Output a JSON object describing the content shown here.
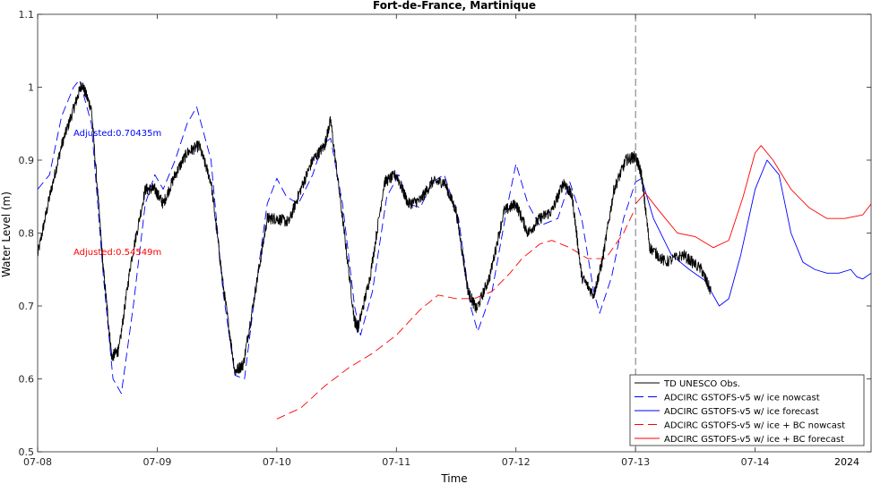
{
  "chart_data": {
    "type": "line",
    "title": "Fort-de-France, Martinique",
    "xlabel": "Time",
    "ylabel": "Water Level (m)",
    "xlim": [
      0,
      6.97
    ],
    "ylim": [
      0.5,
      1.1
    ],
    "x_ticks": [
      {
        "v": 0,
        "label": "07-08"
      },
      {
        "v": 1,
        "label": "07-09"
      },
      {
        "v": 2,
        "label": "07-10"
      },
      {
        "v": 3,
        "label": "07-11"
      },
      {
        "v": 4,
        "label": "07-12"
      },
      {
        "v": 5,
        "label": "07-13"
      },
      {
        "v": 6,
        "label": "07-14"
      }
    ],
    "x_year_label": "2024",
    "y_ticks": [
      {
        "v": 0.5,
        "label": "0.5"
      },
      {
        "v": 0.6,
        "label": "0.6"
      },
      {
        "v": 0.7,
        "label": "0.7"
      },
      {
        "v": 0.8,
        "label": "0.8"
      },
      {
        "v": 0.9,
        "label": "0.9"
      },
      {
        "v": 1.0,
        "label": "1"
      },
      {
        "v": 1.1,
        "label": "1.1"
      }
    ],
    "grid": false,
    "legend_position": "bottom-right",
    "nowcast_forecast_divider_x": 5.0,
    "annotations": [
      {
        "text": "Adjusted:0.70435m",
        "x": 0.3,
        "y": 0.933,
        "color": "#0000ff"
      },
      {
        "text": "Adjusted:0.54549m",
        "x": 0.3,
        "y": 0.77,
        "color": "#ff0000"
      }
    ],
    "series": [
      {
        "name": "TD UNESCO Obs.",
        "color": "#000000",
        "dash": "solid",
        "noise": 0.008,
        "x": [
          0.0,
          0.1,
          0.2,
          0.3,
          0.37,
          0.45,
          0.55,
          0.62,
          0.68,
          0.78,
          0.9,
          0.98,
          1.05,
          1.15,
          1.25,
          1.35,
          1.45,
          1.55,
          1.65,
          1.72,
          1.82,
          1.92,
          2.0,
          2.1,
          2.2,
          2.3,
          2.4,
          2.45,
          2.55,
          2.65,
          2.68,
          2.78,
          2.9,
          3.0,
          3.1,
          3.2,
          3.3,
          3.4,
          3.5,
          3.6,
          3.67,
          3.78,
          3.9,
          4.0,
          4.1,
          4.2,
          4.3,
          4.4,
          4.47,
          4.55,
          4.65,
          4.72,
          4.82,
          4.92,
          5.0,
          5.05,
          5.12,
          5.25,
          5.4,
          5.55,
          5.63
        ],
        "y": [
          0.77,
          0.85,
          0.92,
          0.97,
          1.005,
          0.97,
          0.75,
          0.63,
          0.64,
          0.76,
          0.86,
          0.86,
          0.84,
          0.88,
          0.91,
          0.92,
          0.87,
          0.73,
          0.61,
          0.62,
          0.72,
          0.82,
          0.82,
          0.815,
          0.86,
          0.9,
          0.92,
          0.955,
          0.82,
          0.68,
          0.67,
          0.74,
          0.87,
          0.88,
          0.84,
          0.845,
          0.87,
          0.87,
          0.83,
          0.72,
          0.695,
          0.74,
          0.83,
          0.84,
          0.8,
          0.82,
          0.83,
          0.87,
          0.85,
          0.74,
          0.715,
          0.76,
          0.86,
          0.9,
          0.905,
          0.88,
          0.78,
          0.76,
          0.77,
          0.75,
          0.72
        ]
      },
      {
        "name": "ADCIRC GSTOFS-v5 w/ ice nowcast",
        "color": "#0000ff",
        "dash": "dash",
        "x": [
          0.0,
          0.1,
          0.2,
          0.3,
          0.35,
          0.45,
          0.55,
          0.63,
          0.7,
          0.8,
          0.9,
          0.98,
          1.05,
          1.15,
          1.25,
          1.33,
          1.45,
          1.55,
          1.65,
          1.73,
          1.82,
          1.92,
          2.0,
          2.08,
          2.18,
          2.3,
          2.38,
          2.45,
          2.55,
          2.65,
          2.7,
          2.8,
          2.92,
          3.02,
          3.1,
          3.2,
          3.3,
          3.4,
          3.52,
          3.62,
          3.68,
          3.8,
          3.92,
          4.0,
          4.1,
          4.2,
          4.35,
          4.45,
          4.55,
          4.65,
          4.7,
          4.8,
          4.9,
          5.0
        ],
        "y": [
          0.86,
          0.88,
          0.96,
          1.0,
          1.01,
          0.95,
          0.74,
          0.6,
          0.58,
          0.7,
          0.84,
          0.88,
          0.86,
          0.9,
          0.95,
          0.973,
          0.9,
          0.72,
          0.605,
          0.6,
          0.72,
          0.84,
          0.875,
          0.85,
          0.84,
          0.88,
          0.92,
          0.93,
          0.84,
          0.7,
          0.66,
          0.72,
          0.85,
          0.88,
          0.84,
          0.835,
          0.87,
          0.88,
          0.82,
          0.7,
          0.665,
          0.72,
          0.83,
          0.895,
          0.84,
          0.81,
          0.82,
          0.87,
          0.82,
          0.72,
          0.69,
          0.74,
          0.82,
          0.87
        ]
      },
      {
        "name": "ADCIRC GSTOFS-v5 w/ ice forecast",
        "color": "#0000ff",
        "dash": "solid",
        "x": [
          5.0,
          5.05,
          5.15,
          5.3,
          5.45,
          5.58,
          5.7,
          5.78,
          5.88,
          6.0,
          6.1,
          6.2,
          6.3,
          6.4,
          6.5,
          6.6,
          6.7,
          6.8,
          6.85,
          6.9,
          6.97
        ],
        "y": [
          0.87,
          0.875,
          0.82,
          0.77,
          0.75,
          0.735,
          0.7,
          0.71,
          0.77,
          0.86,
          0.9,
          0.88,
          0.8,
          0.76,
          0.75,
          0.745,
          0.745,
          0.75,
          0.74,
          0.737,
          0.745
        ]
      },
      {
        "name": "ADCIRC GSTOFS-v5 w/ ice + BC nowcast",
        "color": "#ff0000",
        "dash": "dash",
        "x": [
          2.0,
          2.2,
          2.4,
          2.6,
          2.8,
          3.0,
          3.2,
          3.35,
          3.5,
          3.65,
          3.8,
          3.95,
          4.05,
          4.2,
          4.3,
          4.45,
          4.6,
          4.75,
          4.9,
          5.0
        ],
        "y": [
          0.545,
          0.56,
          0.59,
          0.615,
          0.635,
          0.66,
          0.695,
          0.715,
          0.71,
          0.71,
          0.72,
          0.745,
          0.765,
          0.785,
          0.79,
          0.78,
          0.765,
          0.765,
          0.8,
          0.835
        ]
      },
      {
        "name": "ADCIRC GSTOFS-v5 w/ ice + BC forecast",
        "color": "#ff0000",
        "dash": "solid",
        "x": [
          5.0,
          5.08,
          5.2,
          5.35,
          5.5,
          5.65,
          5.78,
          5.9,
          6.0,
          6.05,
          6.15,
          6.3,
          6.45,
          6.6,
          6.75,
          6.9,
          6.97
        ],
        "y": [
          0.84,
          0.855,
          0.83,
          0.8,
          0.795,
          0.78,
          0.79,
          0.85,
          0.91,
          0.92,
          0.9,
          0.86,
          0.835,
          0.82,
          0.82,
          0.825,
          0.84
        ]
      }
    ]
  }
}
